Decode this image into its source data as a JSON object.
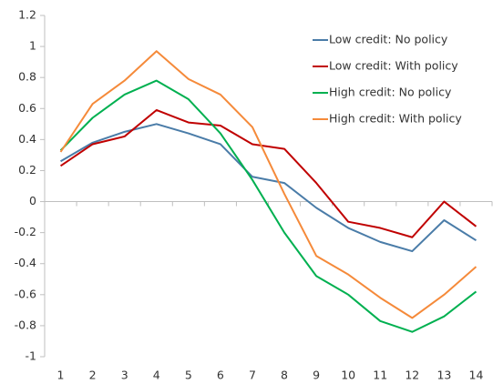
{
  "chart_data": {
    "type": "line",
    "categories": [
      "1",
      "2",
      "3",
      "4",
      "5",
      "6",
      "7",
      "8",
      "9",
      "10",
      "11",
      "12",
      "13",
      "14"
    ],
    "series": [
      {
        "name": "Low credit: No policy",
        "color": "#4a7ca8",
        "values": [
          0.26,
          0.38,
          0.45,
          0.5,
          0.44,
          0.37,
          0.16,
          0.12,
          -0.04,
          -0.17,
          -0.26,
          -0.32,
          -0.12,
          -0.25
        ]
      },
      {
        "name": "Low credit: With policy",
        "color": "#c00000",
        "values": [
          0.23,
          0.37,
          0.42,
          0.59,
          0.51,
          0.49,
          0.37,
          0.34,
          0.12,
          -0.13,
          -0.17,
          -0.23,
          0.0,
          -0.16
        ]
      },
      {
        "name": "High credit: No policy",
        "color": "#00b050",
        "values": [
          0.33,
          0.54,
          0.69,
          0.78,
          0.66,
          0.44,
          0.14,
          -0.2,
          -0.48,
          -0.6,
          -0.77,
          -0.84,
          -0.74,
          -0.58
        ]
      },
      {
        "name": "High credit: With policy",
        "color": "#f58a3a",
        "values": [
          0.32,
          0.63,
          0.78,
          0.97,
          0.79,
          0.69,
          0.48,
          0.05,
          -0.35,
          -0.47,
          -0.62,
          -0.75,
          -0.6,
          -0.42
        ]
      }
    ],
    "ylim": [
      -1,
      1.2
    ],
    "yticks": [
      -1,
      -0.8,
      -0.6,
      -0.4,
      -0.2,
      0,
      0.2,
      0.4,
      0.6,
      0.8,
      1,
      1.2
    ],
    "legend": "top-right"
  }
}
